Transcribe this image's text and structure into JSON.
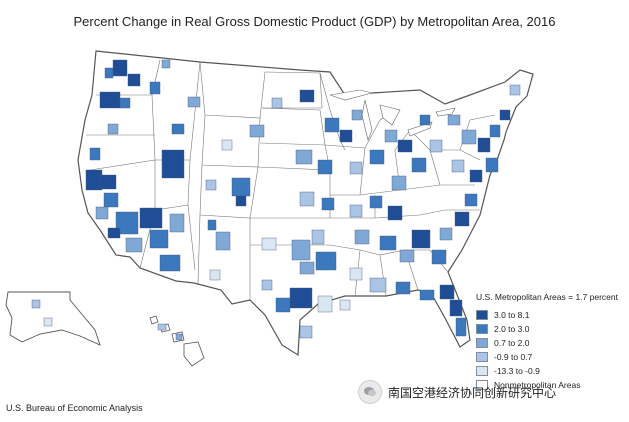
{
  "title": "Percent Change in Real Gross Domestic Product (GDP) by Metropolitan Area, 2016",
  "source": "U.S. Bureau of Economic Analysis",
  "watermark": "南国空港经济协同创新研究中心",
  "legend": {
    "header": "U.S. Metropolitan Areas = 1.7 percent",
    "items": [
      {
        "label": "3.0 to 8.1",
        "color": "#1f4e96"
      },
      {
        "label": "2.0 to 3.0",
        "color": "#3b78bd"
      },
      {
        "label": "0.7 to 2.0",
        "color": "#7fa8d6"
      },
      {
        "label": "-0.9 to 0.7",
        "color": "#a9c4e4"
      },
      {
        "label": "-13.3 to -0.9",
        "color": "#dbe6f3"
      },
      {
        "label": "Nonmetropolitan Areas",
        "color": "#ffffff"
      }
    ]
  },
  "colors": {
    "state_border": "#555555",
    "background": "#ffffff"
  },
  "icons": {
    "watermark": "wechat-icon"
  }
}
